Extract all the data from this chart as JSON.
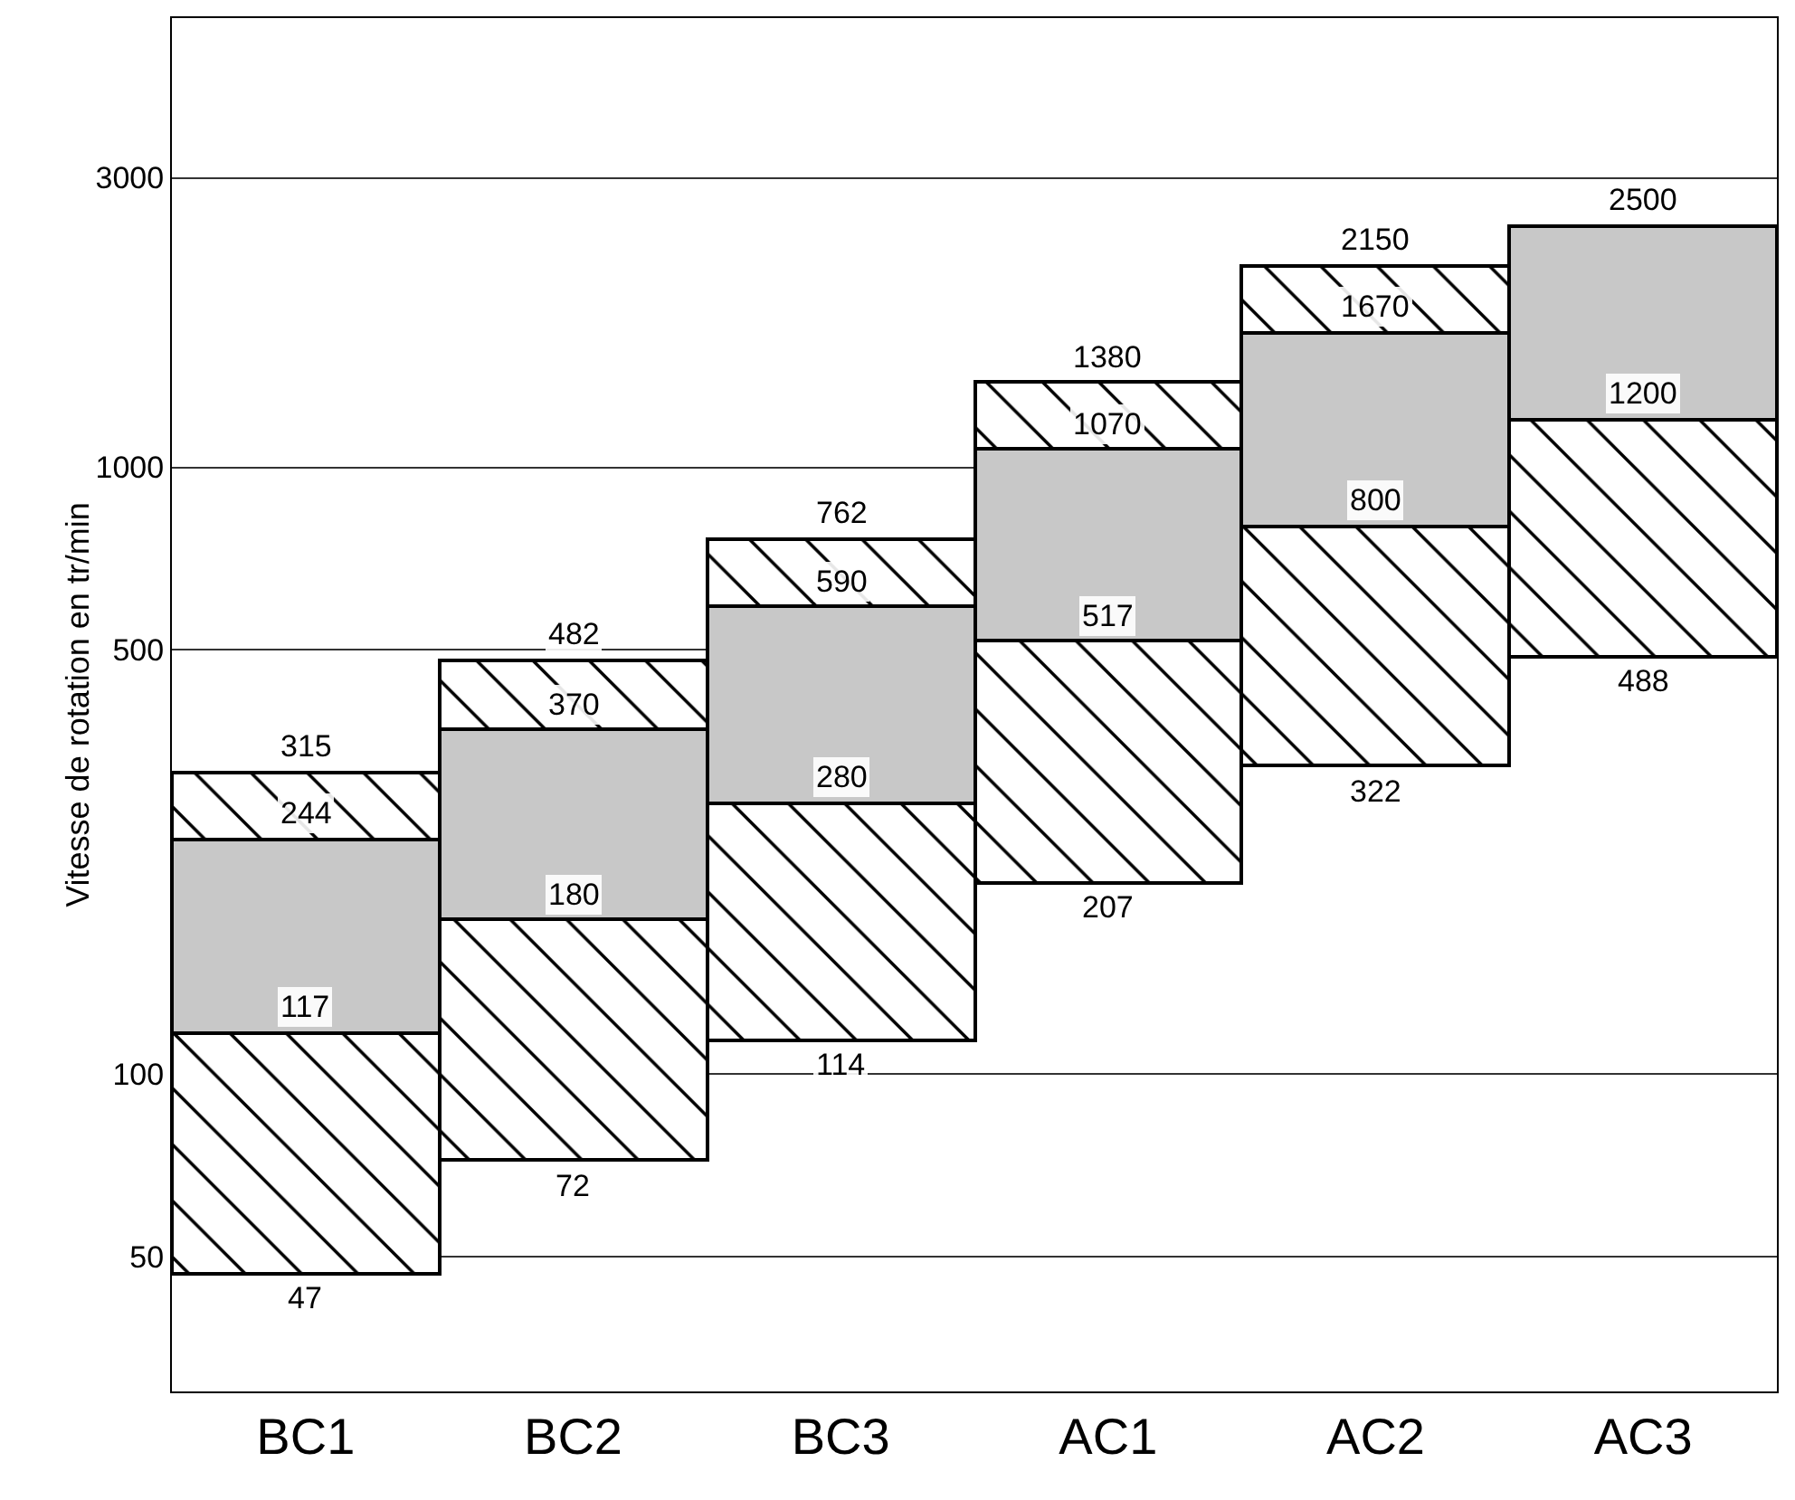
{
  "chart_data": {
    "type": "bar",
    "ylabel": "Vitesse de rotation en tr/min",
    "categories": [
      "BC1",
      "BC2",
      "BC3",
      "AC1",
      "AC2",
      "AC3"
    ],
    "series": [
      {
        "color": "#000000",
        "base": [
          47,
          72,
          114,
          207,
          322,
          488
        ],
        "values": [
          70,
          108,
          166,
          310,
          478,
          712
        ]
      },
      {
        "color": "#c8c8c8",
        "base": [
          117,
          180,
          280,
          517,
          800,
          1200
        ],
        "values": [
          127,
          190,
          310,
          553,
          870,
          1300
        ]
      },
      {
        "color": "#000000",
        "base": [
          244,
          370,
          590,
          1070,
          1670,
          null
        ],
        "values": [
          71,
          112,
          172,
          310,
          480,
          null
        ]
      }
    ],
    "log": true,
    "ylim": [
      30,
      5500
    ],
    "yticks": [
      50,
      100,
      500,
      1000,
      3000
    ],
    "grid": "y",
    "annotations": [
      {
        "text": "47",
        "x": "BC1",
        "y": 47
      },
      {
        "text": "117",
        "x": "BC1",
        "y": 117
      },
      {
        "text": "244",
        "x": "BC1",
        "y": 244
      },
      {
        "text": "315",
        "x": "BC1",
        "y": 315
      },
      {
        "text": "72",
        "x": "BC2",
        "y": 72
      },
      {
        "text": "180",
        "x": "BC2",
        "y": 180
      },
      {
        "text": "370",
        "x": "BC2",
        "y": 370
      },
      {
        "text": "482",
        "x": "BC2",
        "y": 482
      },
      {
        "text": "114",
        "x": "BC3",
        "y": 114
      },
      {
        "text": "280",
        "x": "BC3",
        "y": 280
      },
      {
        "text": "590",
        "x": "BC3",
        "y": 590
      },
      {
        "text": "762",
        "x": "BC3",
        "y": 762
      },
      {
        "text": "207",
        "x": "AC1",
        "y": 207
      },
      {
        "text": "517",
        "x": "AC1",
        "y": 517
      },
      {
        "text": "1070",
        "x": "AC1",
        "y": 1070
      },
      {
        "text": "1380",
        "x": "AC1",
        "y": 1380
      },
      {
        "text": "322",
        "x": "AC2",
        "y": 322
      },
      {
        "text": "800",
        "x": "AC2",
        "y": 800
      },
      {
        "text": "1670",
        "x": "AC2",
        "y": 1670
      },
      {
        "text": "2150",
        "x": "AC2",
        "y": 2150
      },
      {
        "text": "488",
        "x": "AC3",
        "y": 488
      },
      {
        "text": "1200",
        "x": "AC3",
        "y": 1200
      },
      {
        "text": "2500",
        "x": "AC3",
        "y": 2500
      }
    ]
  }
}
